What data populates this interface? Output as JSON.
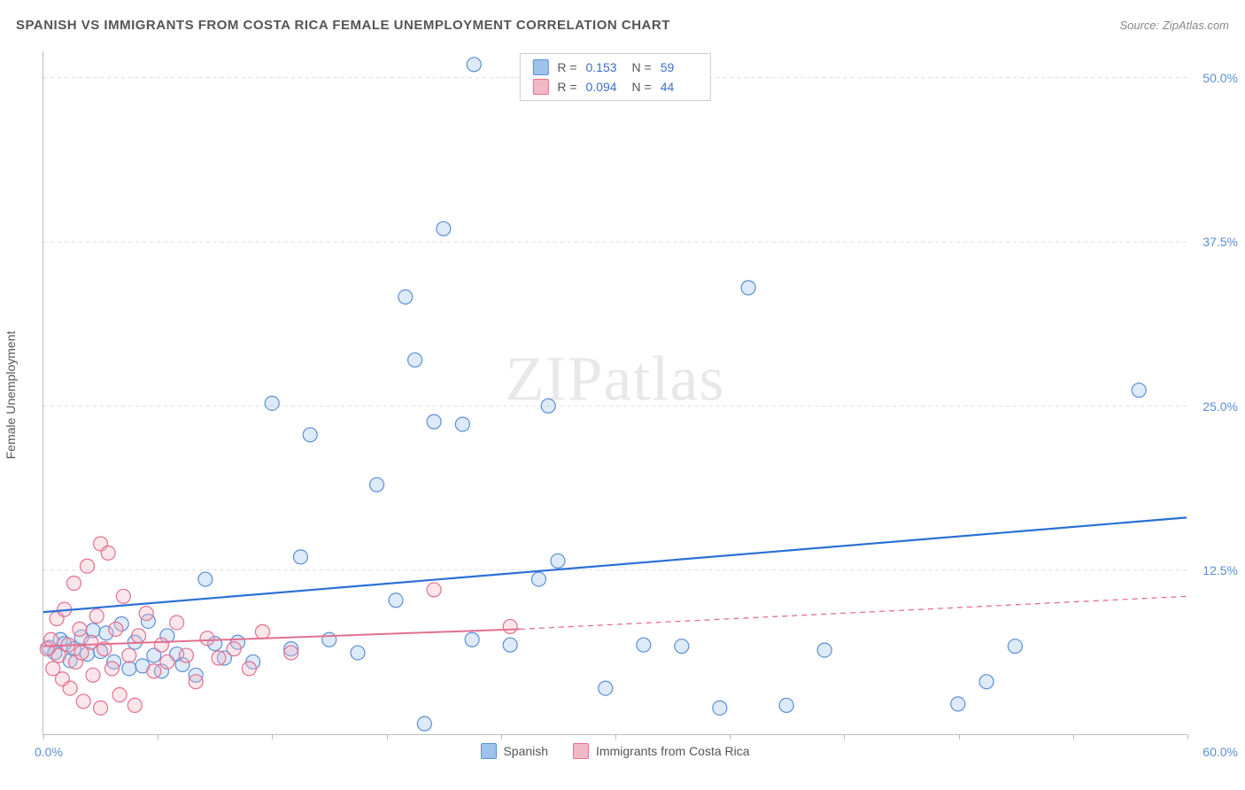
{
  "header": {
    "title": "SPANISH VS IMMIGRANTS FROM COSTA RICA FEMALE UNEMPLOYMENT CORRELATION CHART",
    "source_prefix": "Source: ",
    "source_name": "ZipAtlas.com"
  },
  "chart": {
    "type": "scatter",
    "watermark": "ZIPatlas",
    "background_color": "#ffffff",
    "plot_border_color": "#bbbbbb",
    "grid_color": "#dddddd",
    "ylabel": "Female Unemployment",
    "ylabel_fontsize": 14,
    "xlim": [
      0,
      60
    ],
    "ylim": [
      0,
      52
    ],
    "xticks": [
      0,
      6,
      12,
      18,
      24,
      30,
      36,
      42,
      48,
      54,
      60
    ],
    "xticklabels": {
      "0": "0.0%",
      "60": "60.0%"
    },
    "yticks": [
      12.5,
      25.0,
      37.5,
      50.0
    ],
    "yticklabels": [
      "12.5%",
      "25.0%",
      "37.5%",
      "50.0%"
    ],
    "axis_label_color": "#5b8fd6",
    "marker_radius": 8,
    "marker_stroke_width": 1.2,
    "marker_fill_opacity": 0.35,
    "series": [
      {
        "name": "Spanish",
        "color_fill": "#9fc2ea",
        "color_stroke": "#5b8fd6",
        "R_label": "R =",
        "R": "0.153",
        "N_label": "N =",
        "N": "59",
        "trend": {
          "x1": 0,
          "y1": 9.3,
          "x2": 60,
          "y2": 16.5,
          "color": "#2a6fd6",
          "width": 2.2,
          "dash": "none"
        },
        "points": [
          [
            0.3,
            6.6
          ],
          [
            0.6,
            6.2
          ],
          [
            0.9,
            7.2
          ],
          [
            1.1,
            6.9
          ],
          [
            1.4,
            5.6
          ],
          [
            1.6,
            6.5
          ],
          [
            2.0,
            7.4
          ],
          [
            2.3,
            6.1
          ],
          [
            2.6,
            7.9
          ],
          [
            3.0,
            6.3
          ],
          [
            3.3,
            7.7
          ],
          [
            3.7,
            5.5
          ],
          [
            4.1,
            8.4
          ],
          [
            4.5,
            5.0
          ],
          [
            4.8,
            7.0
          ],
          [
            5.2,
            5.2
          ],
          [
            5.5,
            8.6
          ],
          [
            5.8,
            6.0
          ],
          [
            6.2,
            4.8
          ],
          [
            6.5,
            7.5
          ],
          [
            7.0,
            6.1
          ],
          [
            7.3,
            5.3
          ],
          [
            8.0,
            4.5
          ],
          [
            8.5,
            11.8
          ],
          [
            9.0,
            6.9
          ],
          [
            9.5,
            5.8
          ],
          [
            10.2,
            7.0
          ],
          [
            11.0,
            5.5
          ],
          [
            12.0,
            25.2
          ],
          [
            13.0,
            6.5
          ],
          [
            13.5,
            13.5
          ],
          [
            14.0,
            22.8
          ],
          [
            15.0,
            7.2
          ],
          [
            16.5,
            6.2
          ],
          [
            17.5,
            19.0
          ],
          [
            18.5,
            10.2
          ],
          [
            19.0,
            33.3
          ],
          [
            19.5,
            28.5
          ],
          [
            20.0,
            0.8
          ],
          [
            20.5,
            23.8
          ],
          [
            21.0,
            38.5
          ],
          [
            22.0,
            23.6
          ],
          [
            22.5,
            7.2
          ],
          [
            22.6,
            51.0
          ],
          [
            24.5,
            6.8
          ],
          [
            26.0,
            11.8
          ],
          [
            26.5,
            25.0
          ],
          [
            27.0,
            13.2
          ],
          [
            29.5,
            3.5
          ],
          [
            31.5,
            6.8
          ],
          [
            33.5,
            6.7
          ],
          [
            35.5,
            2.0
          ],
          [
            37.0,
            34.0
          ],
          [
            39.0,
            2.2
          ],
          [
            41.0,
            6.4
          ],
          [
            48.0,
            2.3
          ],
          [
            49.5,
            4.0
          ],
          [
            51.0,
            6.7
          ],
          [
            57.5,
            26.2
          ]
        ]
      },
      {
        "name": "Immigrants from Costa Rica",
        "color_fill": "#f2b8c6",
        "color_stroke": "#e36f8e",
        "R_label": "R =",
        "R": "0.094",
        "N_label": "N =",
        "N": "44",
        "trend_solid": {
          "x1": 0,
          "y1": 6.7,
          "x2": 25,
          "y2": 8.0,
          "color": "#e36f8e",
          "width": 2.0
        },
        "trend_dash": {
          "x1": 25,
          "y1": 8.0,
          "x2": 60,
          "y2": 10.5,
          "color": "#e36f8e",
          "width": 1.3,
          "dash": "6,5"
        },
        "points": [
          [
            0.2,
            6.5
          ],
          [
            0.4,
            7.2
          ],
          [
            0.5,
            5.0
          ],
          [
            0.7,
            8.8
          ],
          [
            0.8,
            6.0
          ],
          [
            1.0,
            4.2
          ],
          [
            1.1,
            9.5
          ],
          [
            1.3,
            6.8
          ],
          [
            1.4,
            3.5
          ],
          [
            1.6,
            11.5
          ],
          [
            1.7,
            5.5
          ],
          [
            1.9,
            8.0
          ],
          [
            2.0,
            6.2
          ],
          [
            2.1,
            2.5
          ],
          [
            2.3,
            12.8
          ],
          [
            2.5,
            7.0
          ],
          [
            2.6,
            4.5
          ],
          [
            2.8,
            9.0
          ],
          [
            3.0,
            14.5
          ],
          [
            3.0,
            2.0
          ],
          [
            3.2,
            6.5
          ],
          [
            3.4,
            13.8
          ],
          [
            3.6,
            5.0
          ],
          [
            3.8,
            8.0
          ],
          [
            4.0,
            3.0
          ],
          [
            4.2,
            10.5
          ],
          [
            4.5,
            6.0
          ],
          [
            4.8,
            2.2
          ],
          [
            5.0,
            7.5
          ],
          [
            5.4,
            9.2
          ],
          [
            5.8,
            4.8
          ],
          [
            6.2,
            6.8
          ],
          [
            6.5,
            5.5
          ],
          [
            7.0,
            8.5
          ],
          [
            7.5,
            6.0
          ],
          [
            8.0,
            4.0
          ],
          [
            8.6,
            7.3
          ],
          [
            9.2,
            5.8
          ],
          [
            10.0,
            6.5
          ],
          [
            10.8,
            5.0
          ],
          [
            11.5,
            7.8
          ],
          [
            13.0,
            6.2
          ],
          [
            20.5,
            11.0
          ],
          [
            24.5,
            8.2
          ]
        ]
      }
    ],
    "bottom_legend": {
      "items": [
        "Spanish",
        "Immigrants from Costa Rica"
      ]
    }
  }
}
